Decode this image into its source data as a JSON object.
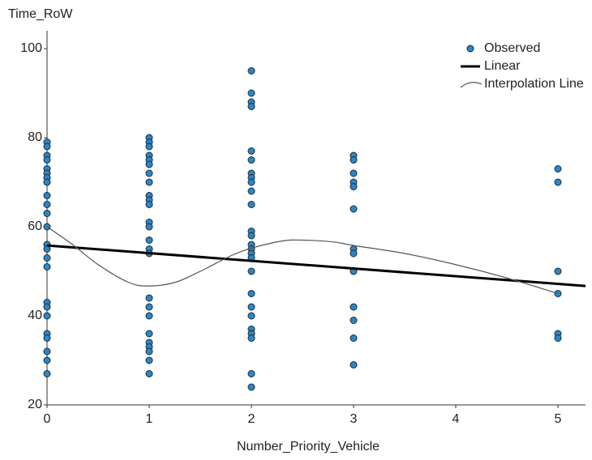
{
  "chart_data": {
    "type": "scatter",
    "x_label": "Number_Priority_Vehicle",
    "y_label": "Time_RoW",
    "xlim": [
      0,
      5.27
    ],
    "ylim": [
      20,
      104
    ],
    "xticks": [
      0,
      1,
      2,
      3,
      4,
      5
    ],
    "yticks": [
      20,
      40,
      60,
      80,
      100
    ],
    "grid": false,
    "legend": "top-right",
    "series": [
      {
        "name": "Observed",
        "type": "scatter",
        "color": "#2a87c8",
        "x": [
          0,
          0,
          0,
          0,
          0,
          0,
          0,
          0,
          0,
          0,
          0,
          0,
          0,
          0,
          0,
          0,
          0,
          0,
          0,
          0,
          0,
          0,
          0,
          0,
          1,
          1,
          1,
          1,
          1,
          1,
          1,
          1,
          1,
          1,
          1,
          1,
          1,
          1,
          1,
          1,
          1,
          1,
          1,
          1,
          1,
          1,
          1,
          1,
          1,
          2,
          2,
          2,
          2,
          2,
          2,
          2,
          2,
          2,
          2,
          2,
          2,
          2,
          2,
          2,
          2,
          2,
          2,
          2,
          2,
          2,
          2,
          2,
          2,
          2,
          2,
          3,
          3,
          3,
          3,
          3,
          3,
          3,
          3,
          3,
          3,
          3,
          3,
          3,
          5,
          5,
          5,
          5,
          5,
          5
        ],
        "values": [
          79,
          78,
          76,
          75,
          73,
          72,
          71,
          70,
          67,
          65,
          63,
          60,
          56,
          55,
          53,
          51,
          43,
          42,
          40,
          36,
          35,
          32,
          30,
          27,
          80,
          79,
          78,
          76,
          75,
          74,
          72,
          70,
          67,
          66,
          65,
          61,
          60,
          57,
          55,
          54,
          44,
          42,
          40,
          36,
          34,
          33,
          32,
          30,
          27,
          95,
          90,
          88,
          87,
          77,
          75,
          72,
          71,
          70,
          68,
          65,
          59,
          58,
          56,
          55,
          54,
          53,
          50,
          45,
          42,
          40,
          37,
          36,
          35,
          27,
          24,
          76,
          75,
          72,
          70,
          69,
          64,
          55,
          54,
          50,
          42,
          39,
          35,
          29,
          73,
          70,
          50,
          45,
          36,
          35
        ]
      },
      {
        "name": "Linear",
        "type": "line",
        "color": "#000000",
        "x": [
          0,
          5.27
        ],
        "values": [
          55.8,
          46.7
        ]
      },
      {
        "name": "Interpolation Line",
        "type": "curve",
        "color": "#555555",
        "x": [
          0,
          0.25,
          0.5,
          0.8,
          1,
          1.25,
          1.5,
          1.8,
          2,
          2.3,
          2.5,
          2.8,
          3,
          3.5,
          4,
          4.5,
          5
        ],
        "values": [
          60,
          56,
          51.5,
          47.5,
          46.7,
          47.5,
          50,
          53.5,
          55.2,
          56.8,
          57,
          56.6,
          55.8,
          54,
          51.5,
          48.5,
          45
        ]
      }
    ]
  }
}
